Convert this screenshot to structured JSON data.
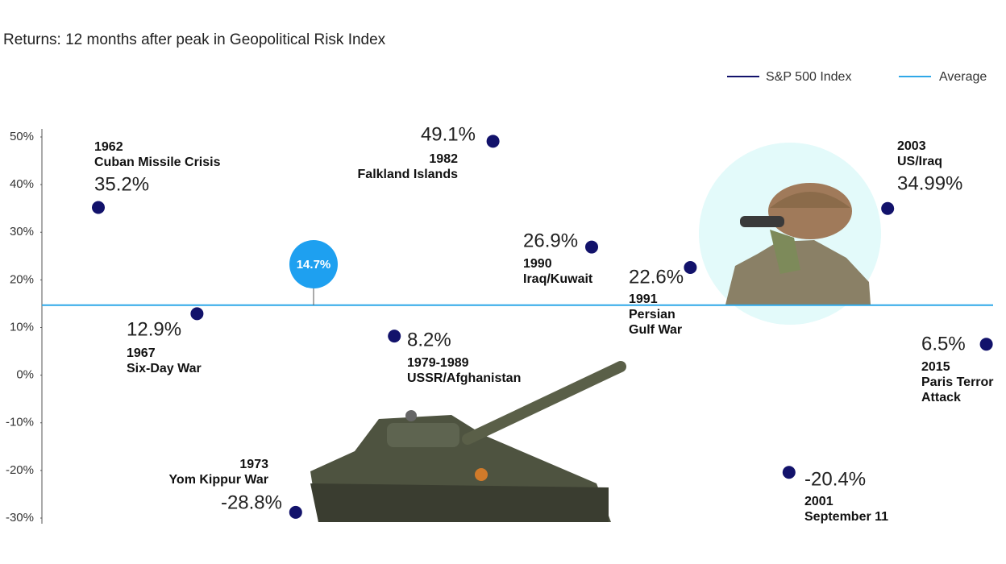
{
  "chart_data": {
    "type": "scatter",
    "title": "Returns: 12 months after peak in Geopolitical Risk Index",
    "categories": [
      "1962",
      "1967",
      "1973",
      "1979-1989",
      "1982",
      "1990",
      "1991",
      "2001",
      "2003",
      "2015"
    ],
    "events": [
      [
        "Cuban Missile Crisis"
      ],
      [
        "Six-Day War"
      ],
      [
        "Yom Kippur War"
      ],
      [
        "USSR/Afghanistan"
      ],
      [
        "Falkland Islands"
      ],
      [
        "Iraq/Kuwait"
      ],
      [
        "Persian",
        "Gulf War"
      ],
      [
        "September 11"
      ],
      [
        "US/Iraq"
      ],
      [
        "Paris Terror",
        "Attack"
      ]
    ],
    "series": [
      {
        "name": "S&P 500 Index",
        "color": "#12126b",
        "values": [
          35.2,
          12.9,
          -28.8,
          8.2,
          49.1,
          26.9,
          22.6,
          -20.4,
          34.99,
          6.5
        ],
        "value_labels": [
          "35.2%",
          "12.9%",
          "-28.8%",
          "8.2%",
          "49.1%",
          "26.9%",
          "22.6%",
          "-20.4%",
          "34.99%",
          "6.5%"
        ]
      }
    ],
    "average": {
      "name": "Average",
      "color": "#2fa8e8",
      "value": 14.7,
      "label": "14.7%"
    },
    "ylim": [
      -30,
      50
    ],
    "yticks": [
      {
        "value": -30,
        "label": "-30%"
      },
      {
        "value": -20,
        "label": "-20%"
      },
      {
        "value": -10,
        "label": "-10%"
      },
      {
        "value": 0,
        "label": "0%"
      },
      {
        "value": 10,
        "label": "10%"
      },
      {
        "value": 20,
        "label": "20%"
      },
      {
        "value": 30,
        "label": "30%"
      },
      {
        "value": 40,
        "label": "40%"
      },
      {
        "value": 50,
        "label": "50%"
      }
    ]
  }
}
